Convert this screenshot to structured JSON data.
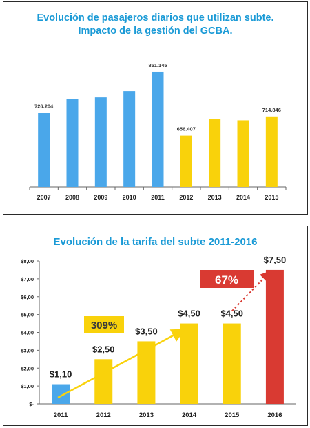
{
  "chart_data": [
    {
      "type": "bar",
      "title": "Evolución de pasajeros diarios que utilizan subte.",
      "subtitle": "Impacto de la gestión del GCBA.",
      "categories": [
        "2007",
        "2008",
        "2009",
        "2010",
        "2011",
        "2012",
        "2013",
        "2014",
        "2015"
      ],
      "values": [
        726204,
        767000,
        773000,
        792000,
        851145,
        656407,
        706000,
        703000,
        714846
      ],
      "data_labels": [
        "726.204",
        "",
        "",
        "",
        "851.145",
        "656.407",
        "",
        "",
        "714.846"
      ],
      "bar_colors": [
        "#4aa7ea",
        "#4aa7ea",
        "#4aa7ea",
        "#4aa7ea",
        "#4aa7ea",
        "#f9d20b",
        "#f9d20b",
        "#f9d20b",
        "#f9d20b"
      ],
      "ylim": [
        500000,
        870000
      ],
      "grid": false,
      "legend": "none"
    },
    {
      "type": "bar",
      "title": "Evolución de la tarifa del subte 2011-2016",
      "categories": [
        "2011",
        "2012",
        "2013",
        "2014",
        "2015",
        "2016"
      ],
      "values": [
        1.1,
        2.5,
        3.5,
        4.5,
        4.5,
        7.5
      ],
      "data_labels": [
        "$1,10",
        "$2,50",
        "$3,50",
        "$4,50",
        "$4,50",
        "$7,50"
      ],
      "bar_colors": [
        "#4aa7ea",
        "#f9d20b",
        "#f9d20b",
        "#f9d20b",
        "#f9d20b",
        "#d93a32"
      ],
      "y_ticks": [
        0,
        1,
        2,
        3,
        4,
        5,
        6,
        7,
        8
      ],
      "y_tick_labels": [
        "$-",
        "$1,00",
        "$2,00",
        "$3,00",
        "$4,00",
        "$5,00",
        "$6,00",
        "$7,00",
        "$8,00"
      ],
      "ylim": [
        0,
        8
      ],
      "grid": false,
      "legend": "none",
      "annotations": [
        {
          "text": "309%",
          "color": "#f9d20b",
          "text_color": "#3a3a3a",
          "arrow_color": "#f9d20b"
        },
        {
          "text": "67%",
          "color": "#d93a32",
          "text_color": "#ffffff",
          "arrow_color": "#d93a32"
        }
      ]
    }
  ]
}
